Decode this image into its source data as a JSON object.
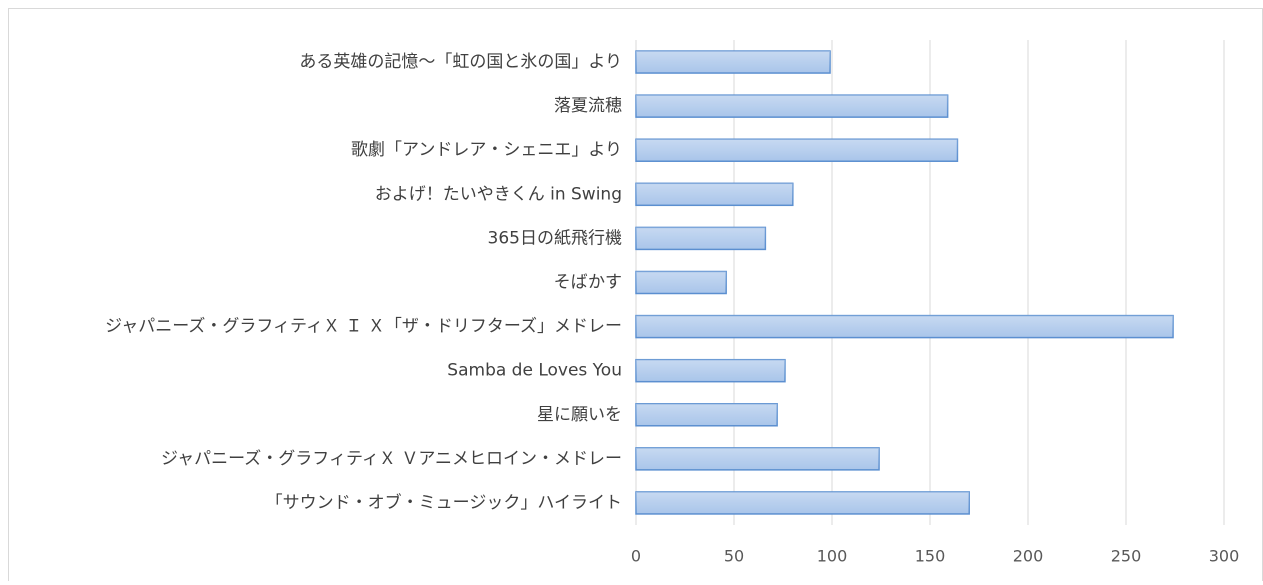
{
  "chart_data": {
    "type": "bar",
    "orientation": "horizontal",
    "categories": [
      "ある英雄の記憶～「虹の国と氷の国」より",
      "落夏流穂",
      "歌劇「アンドレア・シェニエ」より",
      "およげ！たいやきくん in Swing",
      "365日の紙飛行機",
      "そばかす",
      "ジャパニーズ・グラフィティＸ Ｉ Ｘ「ザ・ドリフターズ」メドレー",
      "Samba de Loves You",
      "星に願いを",
      "ジャパニーズ・グラフィティＸ Ｖアニメヒロイン・メドレー",
      "「サウンド・オブ・ミュージック」ハイライト"
    ],
    "values": [
      99,
      159,
      164,
      80,
      66,
      46,
      274,
      76,
      72,
      124,
      170
    ],
    "color": "#a9c5ea",
    "xlim": [
      0,
      300
    ],
    "xticks": [
      0,
      50,
      100,
      150,
      200,
      250,
      300
    ],
    "grid": true
  }
}
